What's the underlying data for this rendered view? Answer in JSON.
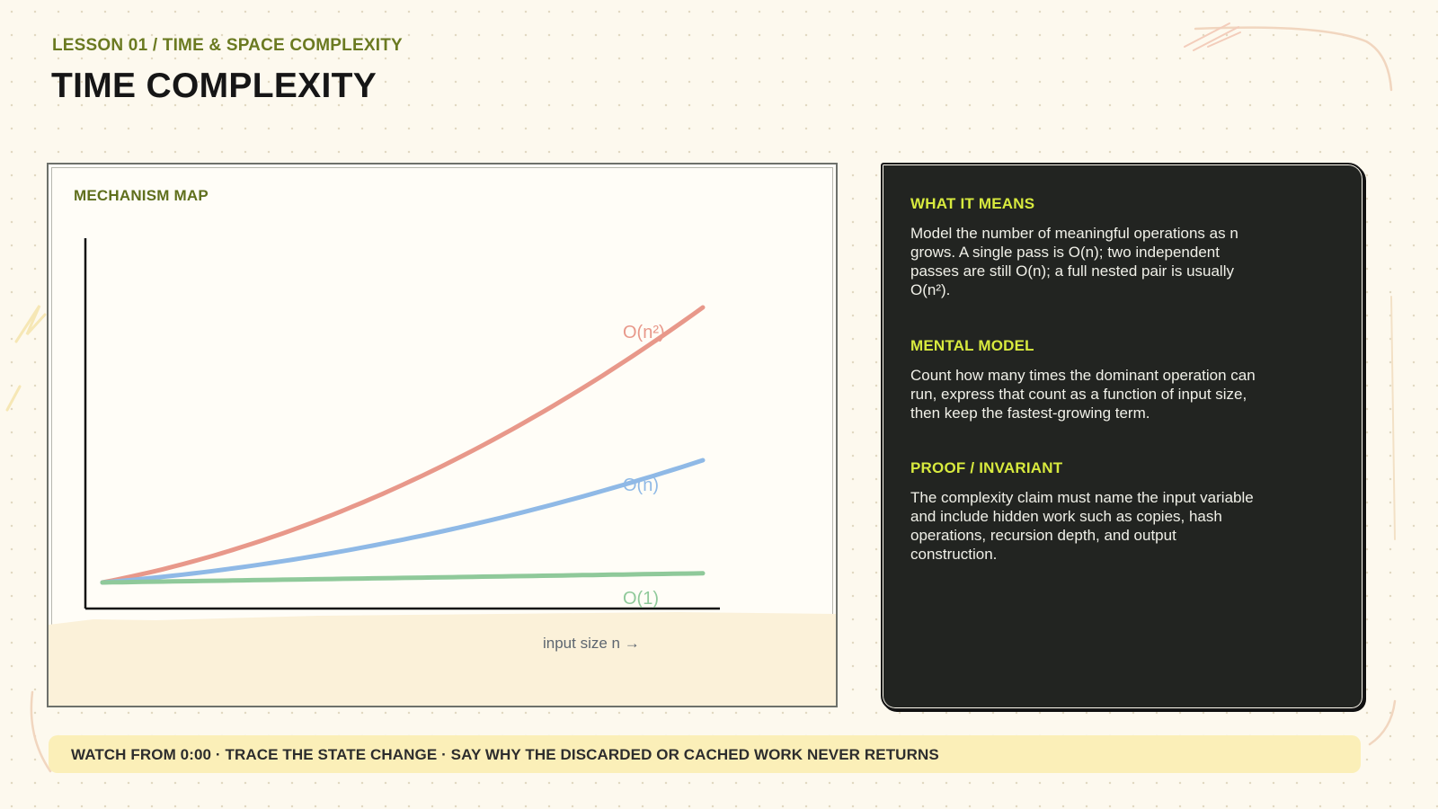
{
  "header": {
    "eyebrow": "LESSON 01 / TIME & SPACE COMPLEXITY",
    "title": "TIME COMPLEXITY"
  },
  "mechanism_map": {
    "title": "MECHANISM MAP",
    "x_axis_label": "input size n →",
    "curves": [
      {
        "label": "O(n²)",
        "color": "#e8988a",
        "end_height": 0.9
      },
      {
        "label": "O(n)",
        "color": "#8fb9e6",
        "end_height": 0.4
      },
      {
        "label": "O(1)",
        "color": "#8fc99a",
        "end_height": 0.03
      }
    ]
  },
  "info_panel": {
    "sections": [
      {
        "heading": "WHAT IT MEANS",
        "body": "Model the number of meaningful operations as n grows. A single pass is O(n); two independent passes are still O(n); a full nested pair is usually O(n²)."
      },
      {
        "heading": "MENTAL MODEL",
        "body": "Count how many times the dominant operation can run, express that count as a function of input size, then keep the fastest-growing term."
      },
      {
        "heading": "PROOF / INVARIANT",
        "body": "The complexity claim must name the input variable and include hidden work such as copies, hash operations, recursion depth, and output construction."
      }
    ]
  },
  "footer": {
    "text": "WATCH FROM 0:00 · TRACE THE STATE CHANGE · SAY WHY THE DISCARDED OR CACHED WORK NEVER RETURNS"
  }
}
